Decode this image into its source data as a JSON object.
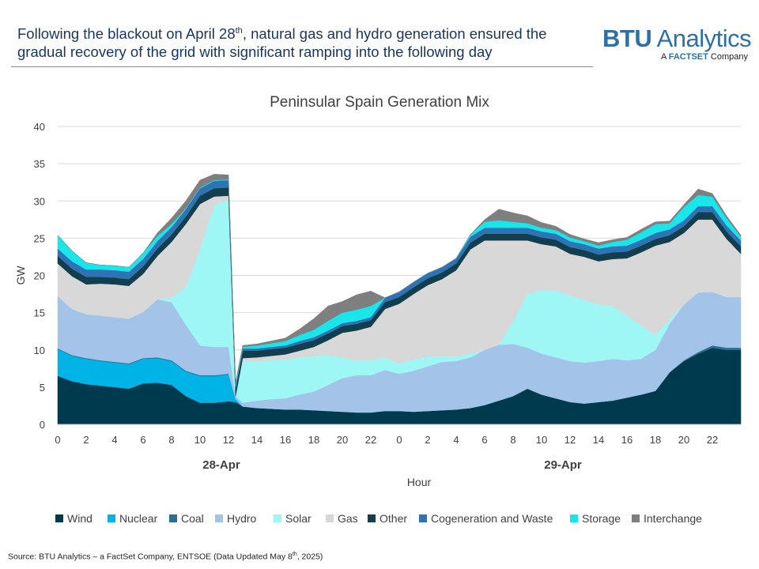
{
  "header": {
    "headline_part1": "Following the blackout on April 28",
    "headline_sup": "th",
    "headline_part2": ", natural gas and hydro generation ensured the gradual recovery of the grid with significant ramping into the following day"
  },
  "logo": {
    "brand_bold": "BTU",
    "brand_light": " Analytics",
    "tagline_prefix": "A ",
    "tagline_bold": "FACTSET",
    "tagline_suffix": " Company"
  },
  "source": {
    "text_part1": "Source: BTU Analytics – a FactSet Company, ENTSOE (Data Updated May 8",
    "text_sup": "th",
    "text_part2": ", 2025)"
  },
  "colors": {
    "Wind": "#003a4e",
    "Nuclear": "#00b3e6",
    "Coal": "#2b6e8f",
    "Hydro": "#a3c4e8",
    "Solar": "#9ef7f4",
    "Gas": "#d8d8d8",
    "Other": "#123e4e",
    "Cogeneration and Waste": "#2e74b5",
    "Storage": "#19e6ea",
    "Interchange": "#7f7f7f"
  },
  "chart_data": {
    "type": "area",
    "stacked": true,
    "title": "Peninsular Spain Generation Mix",
    "xlabel": "Hour",
    "ylabel": "GW",
    "ylim": [
      0,
      40
    ],
    "yticks": [
      "0",
      "5",
      "10",
      "15",
      "20",
      "25",
      "30",
      "35",
      "40"
    ],
    "xticks": [
      "0",
      "2",
      "4",
      "6",
      "8",
      "10",
      "12",
      "14",
      "16",
      "18",
      "20",
      "22",
      "0",
      "2",
      "4",
      "6",
      "8",
      "10",
      "12",
      "14",
      "16",
      "18",
      "20",
      "22"
    ],
    "day_labels": [
      "28-Apr",
      "29-Apr"
    ],
    "legend_position": "bottom",
    "grid": true,
    "x": [
      0,
      1,
      2,
      3,
      4,
      5,
      6,
      7,
      8,
      9,
      10,
      11,
      12,
      12.5,
      13,
      14,
      15,
      16,
      17,
      18,
      19,
      20,
      21,
      22,
      23,
      24,
      25,
      26,
      27,
      28,
      29,
      30,
      31,
      32,
      33,
      34,
      35,
      36,
      37,
      38,
      39,
      40,
      41,
      42,
      43,
      44,
      45,
      46,
      47,
      48
    ],
    "series": [
      {
        "name": "Wind",
        "values": [
          6.5,
          5.8,
          5.4,
          5.2,
          5.0,
          4.8,
          5.5,
          5.6,
          5.3,
          3.8,
          2.9,
          2.9,
          3.1,
          3.0,
          2.4,
          2.2,
          2.1,
          2.0,
          2.0,
          1.9,
          1.8,
          1.7,
          1.6,
          1.6,
          1.8,
          1.8,
          1.7,
          1.8,
          1.9,
          2.0,
          2.2,
          2.6,
          3.2,
          3.8,
          4.8,
          4.0,
          3.5,
          3.0,
          2.8,
          3.0,
          3.2,
          3.6,
          4.0,
          4.5,
          7.0,
          8.5,
          9.5,
          10.3,
          10.0,
          10.0
        ]
      },
      {
        "name": "Nuclear",
        "values": [
          3.6,
          3.4,
          3.4,
          3.3,
          3.3,
          3.3,
          3.3,
          3.3,
          3.2,
          3.3,
          3.6,
          3.6,
          3.6,
          0.4,
          0,
          0,
          0,
          0,
          0,
          0,
          0,
          0,
          0,
          0,
          0,
          0,
          0,
          0,
          0,
          0,
          0,
          0,
          0,
          0,
          0,
          0,
          0,
          0,
          0,
          0,
          0,
          0,
          0,
          0,
          0,
          0,
          0,
          0,
          0,
          0
        ]
      },
      {
        "name": "Coal",
        "values": [
          0.1,
          0.1,
          0.1,
          0.1,
          0.1,
          0.1,
          0.1,
          0.1,
          0.1,
          0.1,
          0.1,
          0.1,
          0.1,
          0,
          0,
          0,
          0,
          0,
          0,
          0,
          0,
          0,
          0,
          0,
          0,
          0,
          0,
          0,
          0,
          0,
          0,
          0,
          0,
          0,
          0,
          0,
          0,
          0,
          0,
          0,
          0,
          0,
          0,
          0,
          0,
          0.1,
          0.2,
          0.3,
          0.3,
          0.3
        ]
      },
      {
        "name": "Hydro",
        "values": [
          7.0,
          6.2,
          5.9,
          6.0,
          6.0,
          6.0,
          6.2,
          7.8,
          7.8,
          6.2,
          4.0,
          3.8,
          3.6,
          0.4,
          0.5,
          1.0,
          1.3,
          1.5,
          2.0,
          2.5,
          3.5,
          4.5,
          5.0,
          5.0,
          5.5,
          5.0,
          5.5,
          6.0,
          6.5,
          6.5,
          6.8,
          7.4,
          7.5,
          7.0,
          5.5,
          5.5,
          5.5,
          5.5,
          5.5,
          5.5,
          5.6,
          5.0,
          4.8,
          5.5,
          6.5,
          7.5,
          8.0,
          7.2,
          6.8,
          6.8
        ]
      },
      {
        "name": "Solar",
        "values": [
          0,
          0,
          0,
          0,
          0,
          0,
          0,
          0,
          0.6,
          5.0,
          13.0,
          19.0,
          19.8,
          0,
          5.5,
          5.3,
          5.2,
          5.2,
          5.0,
          4.8,
          4.0,
          2.8,
          2.0,
          2.0,
          1.7,
          1.4,
          1.5,
          1.3,
          0.8,
          0.6,
          0.5,
          0,
          0,
          3.0,
          7.3,
          8.5,
          9.0,
          8.8,
          8.4,
          7.6,
          7.1,
          6.0,
          4.5,
          2.0,
          0.6,
          0,
          0,
          0,
          0,
          0
        ]
      },
      {
        "name": "Gas",
        "values": [
          4.4,
          4.4,
          4.0,
          4.3,
          4.4,
          4.4,
          5.1,
          5.8,
          7.5,
          8.5,
          6.0,
          1.2,
          0.5,
          0,
          0.5,
          0.5,
          0.6,
          0.7,
          0.9,
          1.2,
          2.0,
          3.3,
          4.0,
          4.5,
          6.5,
          8.0,
          8.8,
          9.6,
          10.3,
          11.6,
          14.0,
          14.7,
          14.0,
          10.9,
          7.1,
          6.2,
          5.9,
          5.6,
          5.8,
          5.8,
          6.3,
          7.7,
          9.8,
          12.0,
          10.4,
          9.6,
          9.8,
          9.7,
          7.8,
          5.8
        ]
      },
      {
        "name": "Other",
        "values": [
          1.0,
          1.0,
          1.0,
          0.9,
          0.9,
          0.9,
          1.0,
          1.0,
          1.0,
          1.0,
          1.1,
          1.1,
          1.1,
          1.0,
          1.0,
          0.9,
          0.9,
          0.9,
          0.9,
          0.9,
          0.9,
          0.9,
          0.9,
          0.9,
          0.9,
          0.9,
          0.9,
          0.9,
          0.9,
          0.9,
          0.9,
          0.9,
          0.9,
          0.9,
          0.9,
          0.9,
          0.9,
          0.9,
          0.9,
          0.9,
          0.9,
          0.9,
          0.9,
          0.9,
          0.9,
          0.9,
          1.0,
          1.0,
          1.0,
          1.0
        ]
      },
      {
        "name": "Cogeneration and Waste",
        "values": [
          1.0,
          1.0,
          1.0,
          1.0,
          1.0,
          1.0,
          1.0,
          1.0,
          1.0,
          1.0,
          1.0,
          1.0,
          1.0,
          0.3,
          0.3,
          0.3,
          0.3,
          0.3,
          0.4,
          0.4,
          0.4,
          0.4,
          0.4,
          0.4,
          0.6,
          0.7,
          0.7,
          0.7,
          0.7,
          0.7,
          0.8,
          0.8,
          0.8,
          0.8,
          0.8,
          0.8,
          0.8,
          0.8,
          0.8,
          0.8,
          0.8,
          0.8,
          0.8,
          0.8,
          0.8,
          0.8,
          0.8,
          0.8,
          0.8,
          0.8
        ]
      },
      {
        "name": "Storage",
        "values": [
          1.8,
          1.4,
          0.9,
          0.6,
          0.6,
          0.6,
          0.8,
          0.7,
          0.4,
          0.1,
          0.1,
          0.1,
          0.1,
          0.3,
          0.2,
          0.4,
          0.5,
          0.6,
          0.8,
          1.0,
          1.3,
          1.4,
          1.5,
          1.5,
          0,
          0,
          0,
          0,
          0,
          0,
          0.3,
          0.8,
          1.0,
          0.8,
          0.6,
          0.5,
          0.5,
          0.5,
          0.4,
          0.4,
          0.6,
          0.8,
          1.0,
          1.2,
          0.8,
          1.8,
          1.5,
          1.3,
          1.0,
          0.5
        ]
      },
      {
        "name": "Interchange",
        "values": [
          0,
          0,
          0,
          0,
          0,
          0,
          0,
          0.4,
          0.8,
          1.0,
          1.0,
          0.8,
          0.6,
          0.3,
          0.2,
          0.2,
          0.3,
          0.4,
          0.8,
          1.5,
          2.0,
          1.5,
          2.0,
          2.0,
          0,
          0,
          0,
          0,
          0,
          0,
          0,
          0.3,
          1.5,
          1.2,
          1.0,
          0.7,
          0.5,
          0.4,
          0.3,
          0.4,
          0.3,
          0.3,
          0.4,
          0.3,
          0.3,
          0.3,
          0.8,
          0.4,
          0.3,
          0.2
        ]
      }
    ]
  }
}
